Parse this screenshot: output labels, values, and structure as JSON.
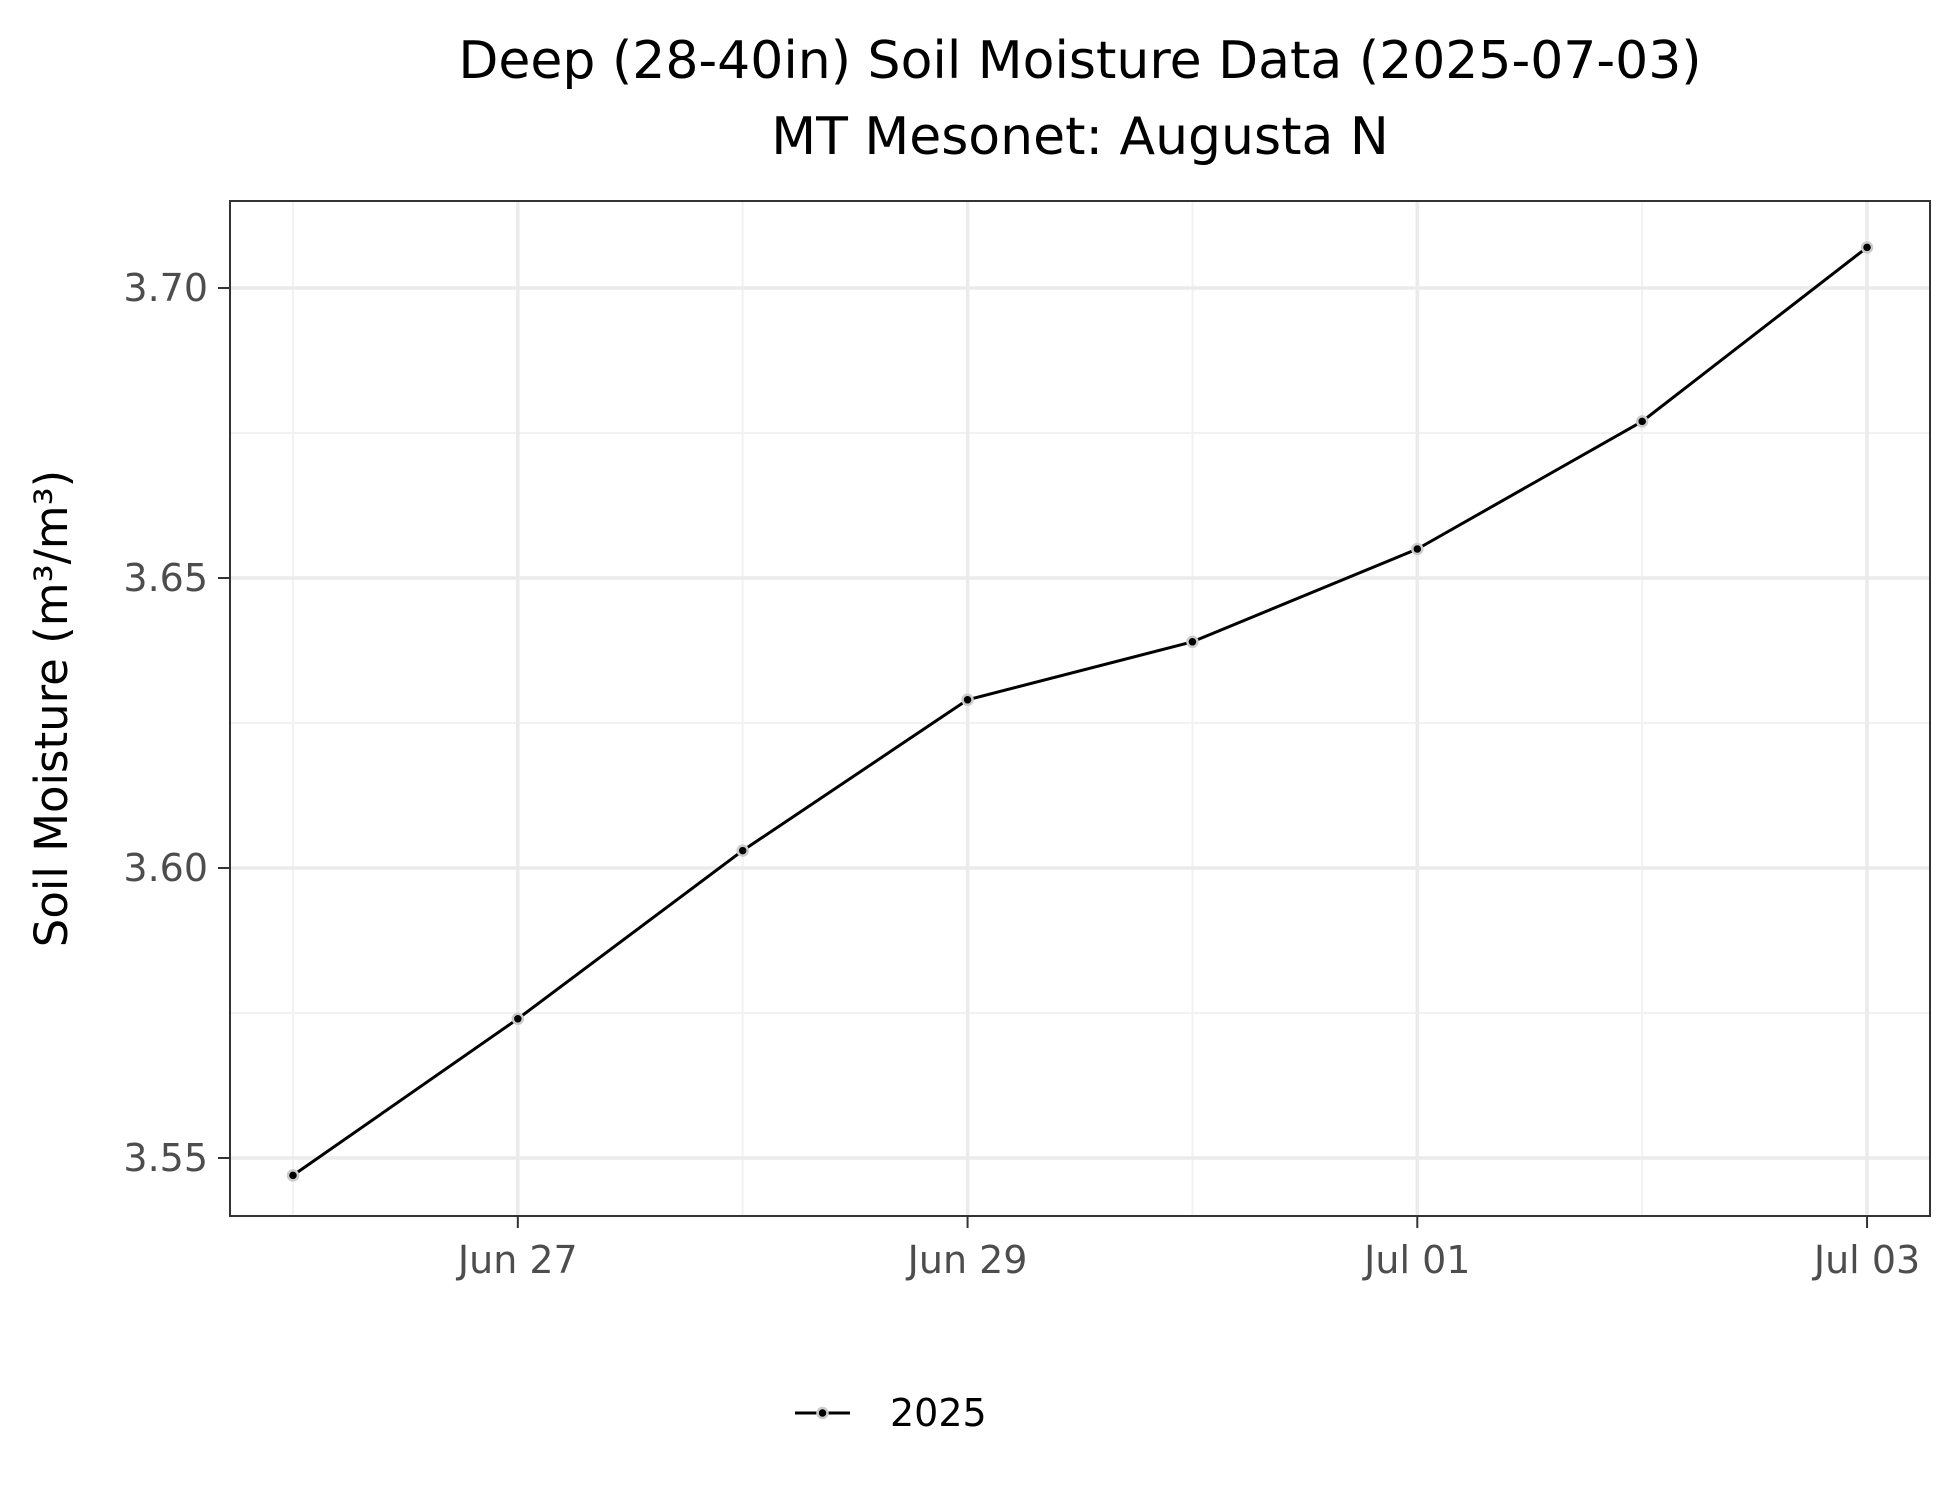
{
  "chart_data": {
    "type": "line",
    "title": "Deep (28-40in) Soil Moisture Data (2025-07-03)",
    "subtitle": "MT Mesonet: Augusta N",
    "ylabel": "Soil Moisture (m³/m³)",
    "xlabel": "",
    "x": [
      "2025-06-26",
      "2025-06-27",
      "2025-06-28",
      "2025-06-29",
      "2025-06-30",
      "2025-07-01",
      "2025-07-02",
      "2025-07-03"
    ],
    "series": [
      {
        "name": "2025",
        "values": [
          3.547,
          3.574,
          3.603,
          3.629,
          3.639,
          3.655,
          3.677,
          3.707
        ],
        "color": "#000000"
      }
    ],
    "xlim": [
      "2025-06-26",
      "2025-07-03"
    ],
    "ylim": [
      3.54,
      3.715
    ],
    "x_ticks": [
      "2025-06-27",
      "2025-06-29",
      "2025-07-01",
      "2025-07-03"
    ],
    "x_tick_labels": [
      "Jun 27",
      "Jun 29",
      "Jul 01",
      "Jul 03"
    ],
    "y_ticks": [
      3.55,
      3.6,
      3.65,
      3.7
    ],
    "y_tick_labels": [
      "3.55",
      "3.60",
      "3.65",
      "3.70"
    ],
    "grid": true,
    "legend_position": "bottom",
    "colors": {
      "panel_border": "#333333",
      "grid_major": "#ebebeb",
      "grid_minor": "#f2f2f2",
      "point_outline": "#cccccc"
    }
  }
}
